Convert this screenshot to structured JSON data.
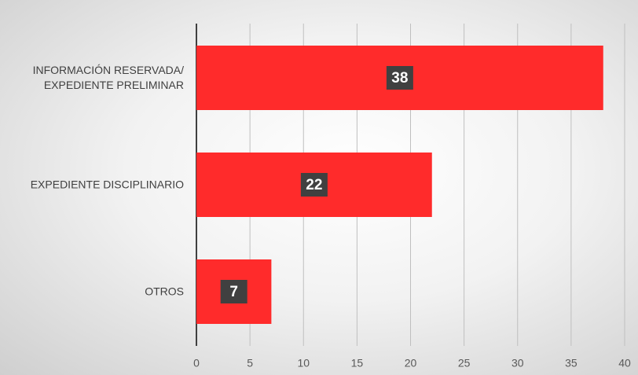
{
  "chart_data": {
    "type": "barh",
    "categories": [
      "INFORMACIÓN RESERVADA/\nEXPEDIENTE PRELIMINAR",
      "EXPEDIENTE DISCIPLINARIO",
      "OTROS"
    ],
    "values": [
      38,
      22,
      7
    ],
    "color": "#ff2b2b",
    "xlim": [
      0,
      40
    ],
    "xticks": [
      0,
      5,
      10,
      15,
      20,
      25,
      30,
      35,
      40
    ],
    "grid": true
  }
}
